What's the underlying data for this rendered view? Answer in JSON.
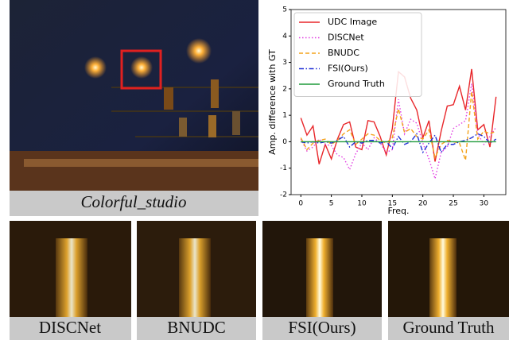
{
  "photo_caption": "Colorful_studio",
  "crops": [
    "DISCNet",
    "BNUDC",
    "FSI(Ours)",
    "Ground Truth"
  ],
  "chart_data": {
    "type": "line",
    "xlabel": "Freq.",
    "ylabel": "Amp. difference with GT",
    "x": [
      0,
      1,
      2,
      3,
      4,
      5,
      6,
      7,
      8,
      9,
      10,
      11,
      12,
      13,
      14,
      15,
      16,
      17,
      18,
      19,
      20,
      21,
      22,
      23,
      24,
      25,
      26,
      27,
      28,
      29,
      30,
      31,
      32
    ],
    "xlim": [
      -1.6,
      33.6
    ],
    "xticks": [
      0,
      5,
      10,
      15,
      20,
      25,
      30
    ],
    "ylim": [
      -2,
      5
    ],
    "yticks": [
      -2,
      -1,
      0,
      1,
      2,
      3,
      4,
      5
    ],
    "legend": "upper left",
    "series": [
      {
        "name": "UDC Image",
        "color": "#e8262a",
        "dash": "solid",
        "values": [
          0.9,
          0.25,
          0.6,
          -0.85,
          -0.1,
          -0.65,
          0.1,
          0.65,
          0.75,
          -0.2,
          -0.3,
          0.8,
          0.75,
          0.2,
          -0.5,
          0.5,
          2.65,
          2.45,
          1.65,
          1.2,
          0.15,
          0.8,
          -0.75,
          0.4,
          1.35,
          1.4,
          2.1,
          1.2,
          2.75,
          0.45,
          0.65,
          -0.2,
          1.7
        ]
      },
      {
        "name": "DISCNet",
        "color": "#e23ce2",
        "dash": "dotted",
        "values": [
          0.1,
          -0.35,
          -0.2,
          0.1,
          -0.1,
          -0.15,
          -0.5,
          -0.6,
          -1.05,
          -0.45,
          -0.05,
          -0.3,
          0.15,
          -0.05,
          -0.4,
          -0.3,
          1.6,
          0.3,
          0.85,
          0.7,
          -0.05,
          -0.65,
          -1.4,
          -0.4,
          -0.2,
          0.5,
          0.65,
          0.8,
          2.2,
          0.3,
          -0.1,
          0.2,
          0.55
        ]
      },
      {
        "name": "BNUDC",
        "color": "#f4a31c",
        "dash": "dashed",
        "values": [
          0.15,
          -0.3,
          -0.05,
          0.05,
          0.1,
          -0.1,
          0.05,
          0.3,
          0.45,
          -0.1,
          0.1,
          0.3,
          0.25,
          0.05,
          -0.05,
          0.15,
          1.25,
          0.35,
          0.5,
          0.2,
          0.1,
          0.45,
          -0.6,
          -0.1,
          0.05,
          0.0,
          -0.05,
          -0.7,
          1.9,
          0.1,
          0.4,
          0.3,
          0.4
        ]
      },
      {
        "name": "FSI(Ours)",
        "color": "#1f2fd6",
        "dash": "dashdot",
        "values": [
          0.0,
          -0.05,
          0.0,
          -0.05,
          0.0,
          -0.05,
          0.05,
          0.2,
          -0.2,
          0.0,
          -0.05,
          0.05,
          0.05,
          -0.05,
          0.0,
          -0.25,
          0.2,
          -0.1,
          0.0,
          0.3,
          -0.4,
          -0.05,
          0.25,
          -0.4,
          -0.1,
          -0.1,
          0.0,
          0.05,
          0.15,
          0.3,
          0.2,
          -0.05,
          0.1
        ]
      },
      {
        "name": "Ground Truth",
        "color": "#1f9a3a",
        "dash": "solid",
        "values": [
          0,
          0,
          0,
          0,
          0,
          0,
          0,
          0,
          0,
          0,
          0,
          0,
          0,
          0,
          0,
          0,
          0,
          0,
          0,
          0,
          0,
          0,
          0,
          0,
          0,
          0,
          0,
          0,
          0,
          0,
          0,
          0,
          0
        ]
      }
    ]
  }
}
